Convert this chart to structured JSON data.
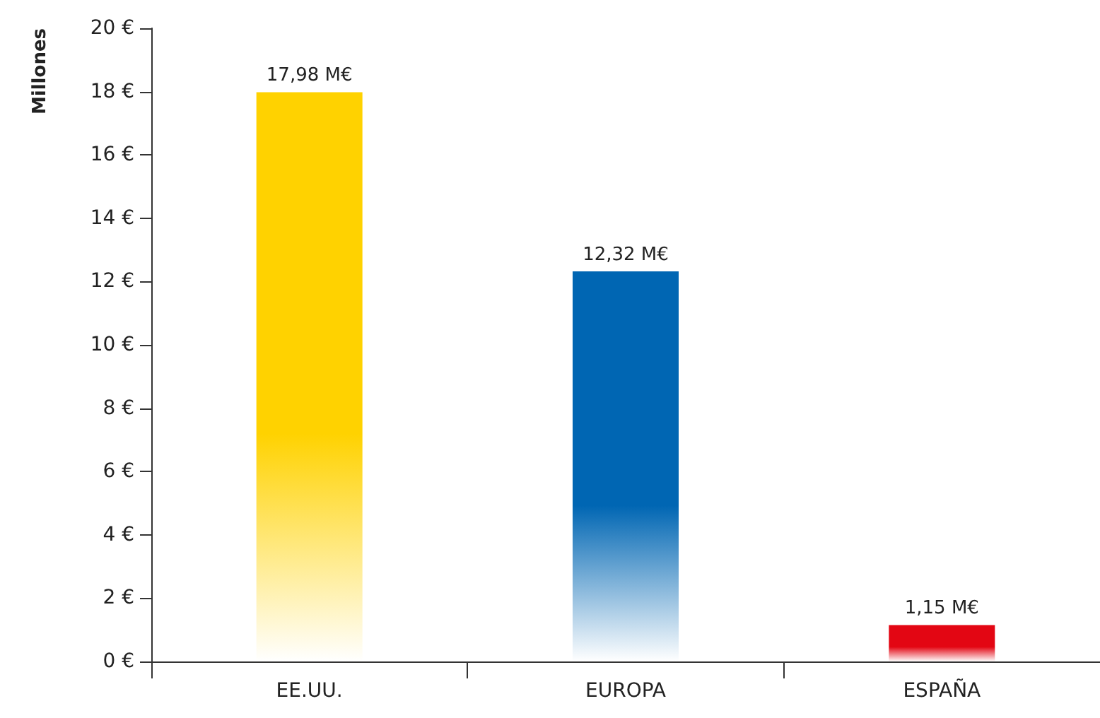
{
  "chart_data": {
    "type": "bar",
    "ylabel": "Millones",
    "categories": [
      "EE.UU.",
      "EUROPA",
      "ESPAÑA"
    ],
    "values": [
      17.98,
      12.32,
      1.15
    ],
    "colors": [
      "#ffd200",
      "#0066b3",
      "#e30613"
    ],
    "value_labels": [
      "17,98 M€",
      "12,32 M€",
      "1,15 M€"
    ],
    "ylim": [
      0,
      20
    ],
    "yticks": [
      {
        "value": 0,
        "label": "0 €"
      },
      {
        "value": 2,
        "label": "2 €"
      },
      {
        "value": 4,
        "label": "4 €"
      },
      {
        "value": 6,
        "label": "6 €"
      },
      {
        "value": 8,
        "label": "8 €"
      },
      {
        "value": 10,
        "label": "10 €"
      },
      {
        "value": 12,
        "label": "12 €"
      },
      {
        "value": 14,
        "label": "14 €"
      },
      {
        "value": 16,
        "label": "16 €"
      },
      {
        "value": 18,
        "label": "18 €"
      },
      {
        "value": 20,
        "label": "20 €"
      }
    ],
    "grid": false
  }
}
